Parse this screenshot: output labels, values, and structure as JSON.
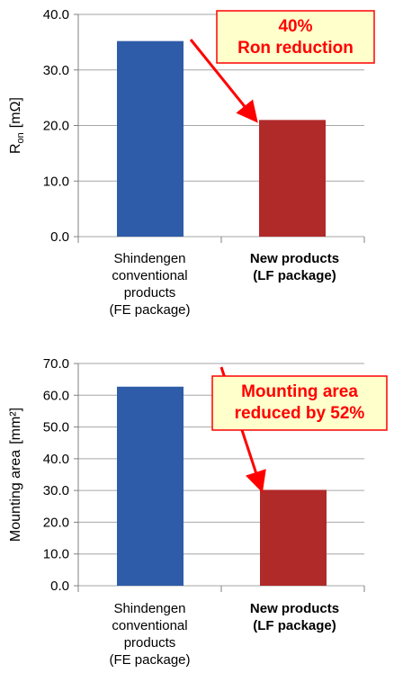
{
  "chart_data": [
    {
      "type": "bar",
      "categories": [
        [
          "Shindengen",
          "conventional",
          "products",
          "(FE package)"
        ],
        [
          "New products",
          "(LF package)"
        ]
      ],
      "values": [
        35.2,
        21.0
      ],
      "bar_colors": [
        "#2e5ca8",
        "#b02a2a"
      ],
      "ylabel_main": "R",
      "ylabel_sub": "on",
      "ylabel_unit": "[mΩ]",
      "ylim": [
        0,
        40
      ],
      "yticks": [
        "0.0",
        "10.0",
        "20.0",
        "30.0",
        "40.0"
      ],
      "ytick_values": [
        0,
        10,
        20,
        30,
        40
      ],
      "grid": true,
      "callout": [
        "40%",
        "Ron reduction"
      ],
      "callout_bg": "#ffffcc",
      "callout_border": "#ff0000"
    },
    {
      "type": "bar",
      "categories": [
        [
          "Shindengen",
          "conventional",
          "products",
          "(FE package)"
        ],
        [
          "New products",
          "(LF package)"
        ]
      ],
      "values": [
        62.7,
        30.2
      ],
      "bar_colors": [
        "#2e5ca8",
        "#b02a2a"
      ],
      "ylabel_main": "Mounting area",
      "ylabel_unit": "[mm²]",
      "ylim": [
        0,
        70
      ],
      "yticks": [
        "0.0",
        "10.0",
        "20.0",
        "30.0",
        "40.0",
        "50.0",
        "60.0",
        "70.0"
      ],
      "ytick_values": [
        0,
        10,
        20,
        30,
        40,
        50,
        60,
        70
      ],
      "grid": true,
      "callout": [
        "Mounting area",
        "reduced by 52%"
      ],
      "callout_bg": "#ffffcc",
      "callout_border": "#ff0000"
    }
  ]
}
